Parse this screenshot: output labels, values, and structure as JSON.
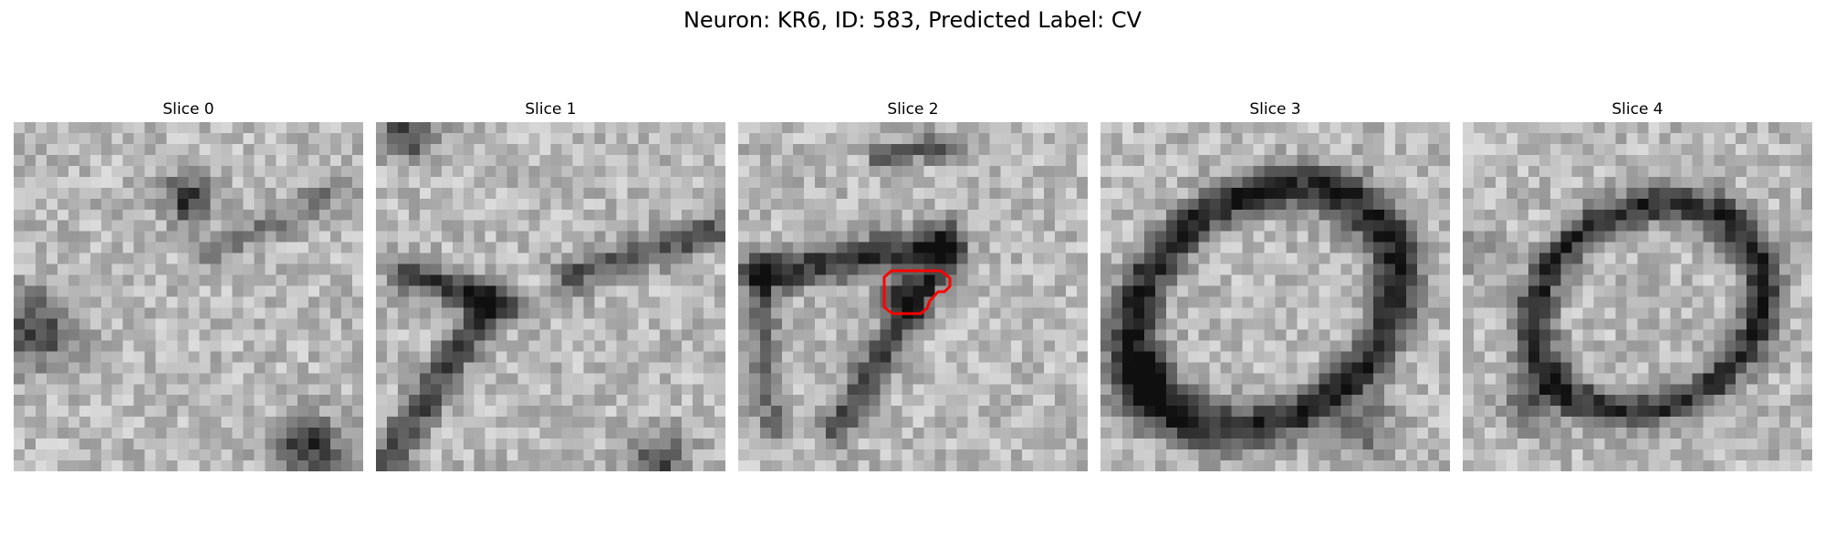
{
  "figure": {
    "title": "Neuron: KR6, ID: 583, Predicted Label: CV"
  },
  "slices": [
    {
      "title": "Slice 0"
    },
    {
      "title": "Slice 1"
    },
    {
      "title": "Slice 2",
      "has_mask_outline": true,
      "mask_outline_color": "#ff0000"
    },
    {
      "title": "Slice 3"
    },
    {
      "title": "Slice 4"
    }
  ],
  "colormap": "gray",
  "axes_visible": false
}
